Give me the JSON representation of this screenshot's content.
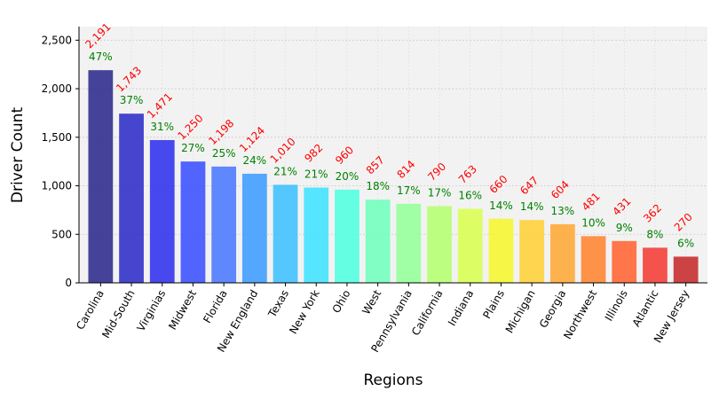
{
  "chart_data": {
    "type": "bar",
    "xlabel": "Regions",
    "ylabel": "Driver Count",
    "ylim": [
      0,
      2640
    ],
    "yticks": [
      0,
      500,
      1000,
      1500,
      2000,
      2500
    ],
    "ytick_labels": [
      "0",
      "500",
      "1,000",
      "1,500",
      "2,000",
      "2,500"
    ],
    "grid": true,
    "categories": [
      "Carolina",
      "Mid-South",
      "Virginias",
      "Midwest",
      "Florida",
      "New England",
      "Texas",
      "New York",
      "Ohio",
      "West",
      "Pennsylvania",
      "California",
      "Indiana",
      "Plains",
      "Michigan",
      "Georgia",
      "Northwest",
      "Illinois",
      "Atlantic",
      "New Jersey"
    ],
    "values": [
      2191,
      1743,
      1471,
      1250,
      1198,
      1124,
      1010,
      982,
      960,
      857,
      814,
      790,
      763,
      660,
      647,
      604,
      481,
      431,
      362,
      270
    ],
    "value_labels": [
      "2,191",
      "1,743",
      "1,471",
      "1,250",
      "1,198",
      "1,124",
      "1,010",
      "982",
      "960",
      "857",
      "814",
      "790",
      "763",
      "660",
      "647",
      "604",
      "481",
      "431",
      "362",
      "270"
    ],
    "percent_labels": [
      "47%",
      "37%",
      "31%",
      "27%",
      "25%",
      "24%",
      "21%",
      "21%",
      "20%",
      "18%",
      "17%",
      "17%",
      "16%",
      "14%",
      "14%",
      "13%",
      "10%",
      "9%",
      "8%",
      "6%"
    ],
    "colors": [
      "#2c2a8c",
      "#2e2cc8",
      "#3030ee",
      "#3a50ff",
      "#4a78ff",
      "#3c9cff",
      "#3cc0ff",
      "#40e2ff",
      "#50ffe0",
      "#70ffbc",
      "#94ff9a",
      "#b4ff70",
      "#d8ff50",
      "#f6f62e",
      "#ffd038",
      "#ffa836",
      "#ff8430",
      "#ff6432",
      "#f23c34",
      "#c62a2a"
    ],
    "value_label_color": "#ff0000",
    "percent_label_color": "#008000",
    "plot_background": "#f2f2f2"
  }
}
